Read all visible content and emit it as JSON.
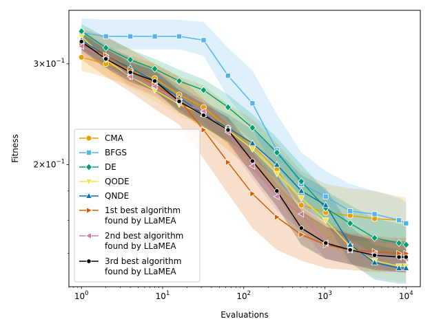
{
  "chart_data": {
    "type": "line",
    "title": "",
    "xlabel": "Evaluations",
    "ylabel": "Fitness",
    "xscale": "log",
    "yscale": "log",
    "xlim": [
      0.7,
      15000
    ],
    "ylim": [
      0.1225,
      0.372
    ],
    "grid": false,
    "legend_position": "lower-left",
    "x_ticks": [
      {
        "value": 1,
        "base": "10",
        "exp": "0"
      },
      {
        "value": 10,
        "base": "10",
        "exp": "1"
      },
      {
        "value": 100,
        "base": "10",
        "exp": "2"
      },
      {
        "value": 1000,
        "base": "10",
        "exp": "3"
      },
      {
        "value": 10000,
        "base": "10",
        "exp": "4"
      }
    ],
    "y_ticks": [
      {
        "value": 0.3,
        "coef": "3",
        "base": "10",
        "exp": "−1"
      },
      {
        "value": 0.2,
        "coef": "2",
        "base": "10",
        "exp": "−1"
      }
    ],
    "x": [
      1,
      2,
      4,
      8,
      16,
      32,
      64,
      128,
      256,
      512,
      1024,
      2048,
      4096,
      8192,
      10000
    ],
    "series": [
      {
        "name": "CMA",
        "color": "#e69f00",
        "marker": "circle",
        "values": [
          0.308,
          0.3,
          0.292,
          0.283,
          0.265,
          0.252,
          0.232,
          0.216,
          0.196,
          0.17,
          0.165,
          0.163,
          0.161,
          0.16,
          0.158
        ],
        "upper": [
          0.325,
          0.318,
          0.31,
          0.3,
          0.285,
          0.275,
          0.255,
          0.24,
          0.218,
          0.195,
          0.185,
          0.182,
          0.18,
          0.176,
          0.175
        ],
        "lower": [
          0.292,
          0.284,
          0.275,
          0.265,
          0.248,
          0.23,
          0.212,
          0.195,
          0.178,
          0.15,
          0.145,
          0.142,
          0.14,
          0.138,
          0.137
        ]
      },
      {
        "name": "BFGS",
        "color": "#56b4e9",
        "marker": "square",
        "values": [
          0.34,
          0.335,
          0.335,
          0.335,
          0.335,
          0.33,
          0.286,
          0.256,
          0.212,
          0.185,
          0.176,
          0.166,
          0.164,
          0.16,
          0.158
        ],
        "upper": [
          0.36,
          0.358,
          0.358,
          0.358,
          0.358,
          0.355,
          0.32,
          0.292,
          0.245,
          0.21,
          0.195,
          0.185,
          0.18,
          0.175,
          0.172
        ],
        "lower": [
          0.322,
          0.318,
          0.318,
          0.318,
          0.318,
          0.31,
          0.262,
          0.232,
          0.19,
          0.165,
          0.155,
          0.148,
          0.147,
          0.145,
          0.143
        ]
      },
      {
        "name": "DE",
        "color": "#009e73",
        "marker": "diamond",
        "values": [
          0.342,
          0.32,
          0.305,
          0.294,
          0.28,
          0.27,
          0.252,
          0.232,
          0.21,
          0.187,
          0.168,
          0.158,
          0.149,
          0.146,
          0.145
        ],
        "upper": [
          0.352,
          0.334,
          0.318,
          0.306,
          0.293,
          0.282,
          0.265,
          0.245,
          0.223,
          0.2,
          0.18,
          0.17,
          0.161,
          0.158,
          0.157
        ],
        "lower": [
          0.333,
          0.307,
          0.292,
          0.282,
          0.268,
          0.258,
          0.239,
          0.22,
          0.198,
          0.175,
          0.158,
          0.148,
          0.14,
          0.137,
          0.136
        ]
      },
      {
        "name": "QODE",
        "color": "#f0e442",
        "marker": "triangle-down",
        "values": [
          0.335,
          0.305,
          0.285,
          0.27,
          0.255,
          0.245,
          0.23,
          0.213,
          0.193,
          0.175,
          0.16,
          0.144,
          0.136,
          0.133,
          0.133
        ],
        "upper": [
          0.348,
          0.318,
          0.298,
          0.283,
          0.268,
          0.257,
          0.242,
          0.225,
          0.205,
          0.187,
          0.172,
          0.156,
          0.147,
          0.144,
          0.144
        ],
        "lower": [
          0.322,
          0.292,
          0.272,
          0.258,
          0.243,
          0.233,
          0.218,
          0.201,
          0.182,
          0.163,
          0.149,
          0.134,
          0.127,
          0.125,
          0.125
        ]
      },
      {
        "name": "QNDE",
        "color": "#0072b2",
        "marker": "triangle-up",
        "values": [
          0.33,
          0.31,
          0.295,
          0.28,
          0.262,
          0.245,
          0.232,
          0.218,
          0.2,
          0.18,
          0.17,
          0.145,
          0.135,
          0.132,
          0.132
        ],
        "upper": [
          0.343,
          0.323,
          0.308,
          0.293,
          0.275,
          0.258,
          0.245,
          0.23,
          0.212,
          0.192,
          0.182,
          0.156,
          0.145,
          0.142,
          0.142
        ],
        "lower": [
          0.318,
          0.298,
          0.282,
          0.268,
          0.25,
          0.233,
          0.22,
          0.206,
          0.188,
          0.169,
          0.159,
          0.135,
          0.126,
          0.124,
          0.124
        ]
      },
      {
        "name": "1st best algorithm\nfound by LLaMEA",
        "color": "#d55e00",
        "marker": "triangle-right",
        "values": [
          0.325,
          0.31,
          0.293,
          0.275,
          0.26,
          0.23,
          0.202,
          0.178,
          0.162,
          0.151,
          0.145,
          0.142,
          0.141,
          0.14,
          0.14
        ],
        "upper": [
          0.345,
          0.335,
          0.318,
          0.3,
          0.285,
          0.26,
          0.235,
          0.21,
          0.185,
          0.168,
          0.158,
          0.152,
          0.15,
          0.149,
          0.149
        ],
        "lower": [
          0.305,
          0.285,
          0.268,
          0.25,
          0.235,
          0.205,
          0.178,
          0.155,
          0.142,
          0.136,
          0.132,
          0.131,
          0.13,
          0.13,
          0.13
        ]
      },
      {
        "name": "2nd best algorithm\nfound by LLaMEA",
        "color": "#cc79a7",
        "marker": "triangle-left",
        "values": [
          0.322,
          0.308,
          0.285,
          0.274,
          0.257,
          0.248,
          0.228,
          0.199,
          0.176,
          0.164,
          0.146,
          0.142,
          0.14,
          0.138,
          0.137
        ],
        "upper": [
          0.333,
          0.32,
          0.297,
          0.286,
          0.269,
          0.26,
          0.24,
          0.211,
          0.188,
          0.175,
          0.156,
          0.151,
          0.149,
          0.147,
          0.146
        ],
        "lower": [
          0.311,
          0.296,
          0.274,
          0.263,
          0.246,
          0.237,
          0.217,
          0.189,
          0.166,
          0.154,
          0.137,
          0.134,
          0.132,
          0.13,
          0.129
        ]
      },
      {
        "name": "3rd best algorithm\nfound by LLaMEA",
        "color": "#000000",
        "marker": "circle-small",
        "values": [
          0.328,
          0.306,
          0.29,
          0.28,
          0.258,
          0.244,
          0.23,
          0.203,
          0.18,
          0.155,
          0.146,
          0.142,
          0.139,
          0.138,
          0.138
        ],
        "upper": [
          0.34,
          0.318,
          0.302,
          0.292,
          0.27,
          0.256,
          0.242,
          0.215,
          0.192,
          0.166,
          0.156,
          0.151,
          0.148,
          0.147,
          0.147
        ],
        "lower": [
          0.317,
          0.295,
          0.279,
          0.269,
          0.247,
          0.233,
          0.219,
          0.192,
          0.169,
          0.145,
          0.137,
          0.134,
          0.131,
          0.13,
          0.13
        ]
      }
    ]
  }
}
